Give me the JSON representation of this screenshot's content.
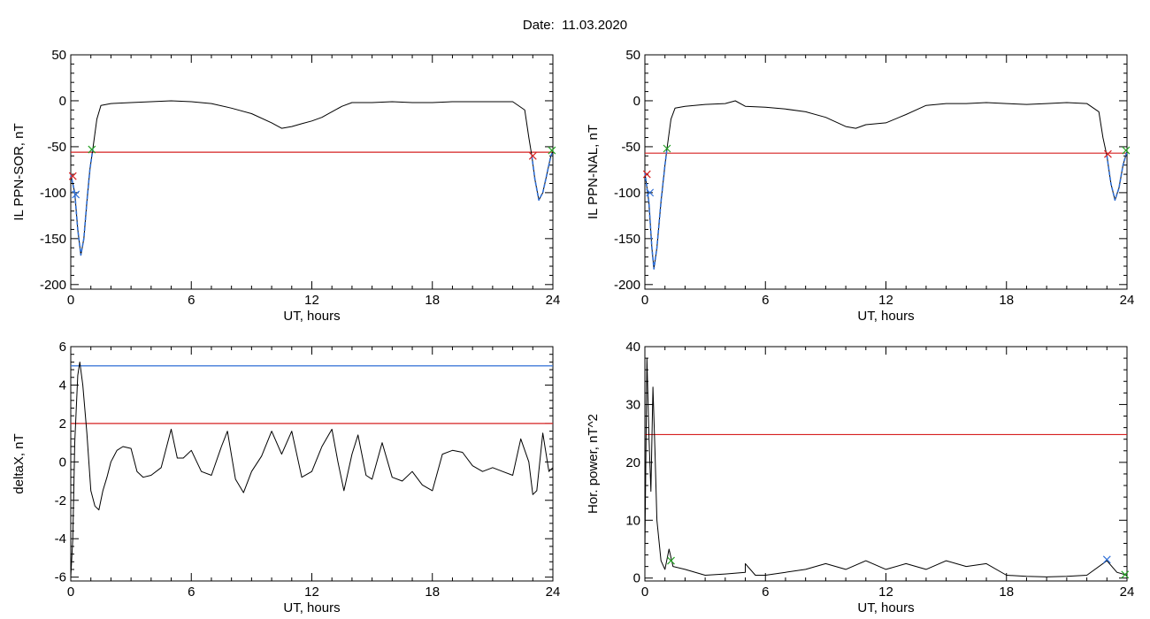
{
  "title": "Date:  11.03.2020",
  "chart_data": [
    {
      "type": "line",
      "ylabel": "IL PPN-SOR, nT",
      "xlabel": "UT, hours",
      "xlim": [
        0,
        24
      ],
      "ylim": [
        -205,
        50
      ],
      "xticks": [
        0,
        6,
        12,
        18,
        24
      ],
      "yticks": [
        -200,
        -150,
        -100,
        -50,
        0,
        50
      ],
      "threshold_lines": [
        {
          "value": -56,
          "color": "#d62020"
        }
      ],
      "series": [
        {
          "color": "#000000",
          "points": [
            [
              0.0,
              -80
            ],
            [
              0.2,
              -100
            ],
            [
              0.35,
              -140
            ],
            [
              0.5,
              -168
            ],
            [
              0.65,
              -150
            ],
            [
              0.8,
              -110
            ],
            [
              0.95,
              -75
            ],
            [
              1.1,
              -52
            ],
            [
              1.3,
              -20
            ],
            [
              1.5,
              -5
            ],
            [
              2,
              -3
            ],
            [
              3,
              -2
            ],
            [
              4,
              -1
            ],
            [
              5,
              0
            ],
            [
              6,
              -1
            ],
            [
              7,
              -3
            ],
            [
              8,
              -8
            ],
            [
              9,
              -14
            ],
            [
              10,
              -24
            ],
            [
              10.5,
              -30
            ],
            [
              11,
              -28
            ],
            [
              11.5,
              -25
            ],
            [
              12,
              -22
            ],
            [
              12.5,
              -18
            ],
            [
              13,
              -12
            ],
            [
              13.5,
              -6
            ],
            [
              14,
              -2
            ],
            [
              15,
              -2
            ],
            [
              16,
              -1
            ],
            [
              17,
              -2
            ],
            [
              18,
              -2
            ],
            [
              19,
              -1
            ],
            [
              20,
              -1
            ],
            [
              21,
              -1
            ],
            [
              22,
              -1
            ],
            [
              22.6,
              -10
            ],
            [
              22.8,
              -40
            ],
            [
              22.95,
              -60
            ],
            [
              23.1,
              -85
            ],
            [
              23.3,
              -108
            ],
            [
              23.5,
              -100
            ],
            [
              23.7,
              -80
            ],
            [
              23.9,
              -60
            ],
            [
              24,
              -55
            ]
          ]
        },
        {
          "color": "#2f6fd6",
          "dashed": true,
          "points": [
            [
              0.0,
              -80
            ],
            [
              0.2,
              -100
            ],
            [
              0.35,
              -140
            ],
            [
              0.5,
              -168
            ],
            [
              0.65,
              -150
            ],
            [
              0.8,
              -110
            ],
            [
              0.95,
              -75
            ],
            [
              1.1,
              -52
            ]
          ]
        },
        {
          "color": "#2f6fd6",
          "dashed": true,
          "points": [
            [
              22.95,
              -60
            ],
            [
              23.1,
              -85
            ],
            [
              23.3,
              -108
            ],
            [
              23.5,
              -100
            ],
            [
              23.7,
              -80
            ],
            [
              23.9,
              -60
            ],
            [
              24,
              -55
            ]
          ]
        }
      ],
      "markers": [
        {
          "x": 0.1,
          "y": -82,
          "color": "#d62020"
        },
        {
          "x": 0.25,
          "y": -102,
          "color": "#2f6fd6"
        },
        {
          "x": 1.05,
          "y": -53,
          "color": "#22a022"
        },
        {
          "x": 23.0,
          "y": -60,
          "color": "#d62020"
        },
        {
          "x": 23.95,
          "y": -54,
          "color": "#22a022"
        }
      ]
    },
    {
      "type": "line",
      "ylabel": "IL PPN-NAL, nT",
      "xlabel": "UT, hours",
      "xlim": [
        0,
        24
      ],
      "ylim": [
        -205,
        50
      ],
      "xticks": [
        0,
        6,
        12,
        18,
        24
      ],
      "yticks": [
        -200,
        -150,
        -100,
        -50,
        0,
        50
      ],
      "threshold_lines": [
        {
          "value": -57,
          "color": "#d62020"
        }
      ],
      "series": [
        {
          "color": "#000000",
          "points": [
            [
              0.0,
              -78
            ],
            [
              0.2,
              -110
            ],
            [
              0.35,
              -160
            ],
            [
              0.45,
              -183
            ],
            [
              0.6,
              -160
            ],
            [
              0.8,
              -110
            ],
            [
              1.0,
              -70
            ],
            [
              1.1,
              -52
            ],
            [
              1.3,
              -20
            ],
            [
              1.5,
              -8
            ],
            [
              2,
              -6
            ],
            [
              3,
              -4
            ],
            [
              4,
              -3
            ],
            [
              4.5,
              0
            ],
            [
              5,
              -6
            ],
            [
              6,
              -7
            ],
            [
              7,
              -9
            ],
            [
              8,
              -12
            ],
            [
              9,
              -18
            ],
            [
              10,
              -28
            ],
            [
              10.5,
              -30
            ],
            [
              11,
              -26
            ],
            [
              12,
              -24
            ],
            [
              13,
              -15
            ],
            [
              14,
              -5
            ],
            [
              15,
              -3
            ],
            [
              16,
              -3
            ],
            [
              17,
              -2
            ],
            [
              18,
              -3
            ],
            [
              19,
              -4
            ],
            [
              20,
              -3
            ],
            [
              21,
              -2
            ],
            [
              22,
              -3
            ],
            [
              22.6,
              -12
            ],
            [
              22.8,
              -40
            ],
            [
              23.0,
              -60
            ],
            [
              23.2,
              -90
            ],
            [
              23.4,
              -108
            ],
            [
              23.6,
              -95
            ],
            [
              23.8,
              -70
            ],
            [
              24,
              -55
            ]
          ]
        },
        {
          "color": "#2f6fd6",
          "dashed": true,
          "points": [
            [
              0.0,
              -78
            ],
            [
              0.2,
              -110
            ],
            [
              0.35,
              -160
            ],
            [
              0.45,
              -183
            ],
            [
              0.6,
              -160
            ],
            [
              0.8,
              -110
            ],
            [
              1.0,
              -70
            ],
            [
              1.1,
              -52
            ]
          ]
        },
        {
          "color": "#2f6fd6",
          "dashed": true,
          "points": [
            [
              23.0,
              -60
            ],
            [
              23.2,
              -90
            ],
            [
              23.4,
              -108
            ],
            [
              23.6,
              -95
            ],
            [
              23.8,
              -70
            ],
            [
              24,
              -55
            ]
          ]
        }
      ],
      "markers": [
        {
          "x": 0.1,
          "y": -80,
          "color": "#d62020"
        },
        {
          "x": 0.25,
          "y": -100,
          "color": "#2f6fd6"
        },
        {
          "x": 1.1,
          "y": -52,
          "color": "#22a022"
        },
        {
          "x": 23.05,
          "y": -58,
          "color": "#d62020"
        },
        {
          "x": 23.95,
          "y": -54,
          "color": "#22a022"
        }
      ]
    },
    {
      "type": "line",
      "ylabel": "deltaX, nT",
      "xlabel": "UT, hours",
      "xlim": [
        0,
        24
      ],
      "ylim": [
        -6.2,
        6
      ],
      "xticks": [
        0,
        6,
        12,
        18,
        24
      ],
      "yticks": [
        -6,
        -4,
        -2,
        0,
        2,
        4,
        6
      ],
      "threshold_lines": [
        {
          "value": 5.0,
          "color": "#2f6fd6"
        },
        {
          "value": 2.0,
          "color": "#d62020"
        }
      ],
      "series": [
        {
          "color": "#000000",
          "points": [
            [
              0.0,
              -6
            ],
            [
              0.1,
              -4
            ],
            [
              0.2,
              1
            ],
            [
              0.35,
              4.5
            ],
            [
              0.45,
              5.2
            ],
            [
              0.6,
              4
            ],
            [
              0.8,
              1.5
            ],
            [
              1.0,
              -1.5
            ],
            [
              1.2,
              -2.3
            ],
            [
              1.4,
              -2.5
            ],
            [
              1.6,
              -1.5
            ],
            [
              1.8,
              -0.8
            ],
            [
              2.0,
              0
            ],
            [
              2.3,
              0.6
            ],
            [
              2.6,
              0.8
            ],
            [
              3.0,
              0.7
            ],
            [
              3.3,
              -0.5
            ],
            [
              3.6,
              -0.8
            ],
            [
              4,
              -0.7
            ],
            [
              4.5,
              -0.3
            ],
            [
              5,
              1.7
            ],
            [
              5.3,
              0.2
            ],
            [
              5.6,
              0.2
            ],
            [
              6,
              0.6
            ],
            [
              6.5,
              -0.5
            ],
            [
              7,
              -0.7
            ],
            [
              7.5,
              0.8
            ],
            [
              7.8,
              1.6
            ],
            [
              8.2,
              -0.9
            ],
            [
              8.6,
              -1.6
            ],
            [
              9,
              -0.5
            ],
            [
              9.5,
              0.3
            ],
            [
              10,
              1.6
            ],
            [
              10.5,
              0.4
            ],
            [
              11,
              1.6
            ],
            [
              11.5,
              -0.8
            ],
            [
              12,
              -0.5
            ],
            [
              12.5,
              0.8
            ],
            [
              13,
              1.7
            ],
            [
              13.3,
              0
            ],
            [
              13.6,
              -1.5
            ],
            [
              14,
              0.4
            ],
            [
              14.3,
              1.4
            ],
            [
              14.7,
              -0.7
            ],
            [
              15,
              -0.9
            ],
            [
              15.5,
              1
            ],
            [
              16,
              -0.8
            ],
            [
              16.5,
              -1
            ],
            [
              17,
              -0.5
            ],
            [
              17.5,
              -1.2
            ],
            [
              18,
              -1.5
            ],
            [
              18.5,
              0.4
            ],
            [
              19,
              0.6
            ],
            [
              19.5,
              0.5
            ],
            [
              20,
              -0.2
            ],
            [
              20.5,
              -0.5
            ],
            [
              21,
              -0.3
            ],
            [
              21.5,
              -0.5
            ],
            [
              22,
              -0.7
            ],
            [
              22.4,
              1.2
            ],
            [
              22.8,
              0
            ],
            [
              23.0,
              -1.7
            ],
            [
              23.2,
              -1.5
            ],
            [
              23.5,
              1.5
            ],
            [
              23.8,
              -0.5
            ],
            [
              24,
              -0.3
            ]
          ]
        }
      ],
      "markers": []
    },
    {
      "type": "line",
      "ylabel": "Hor. power, nT^2",
      "xlabel": "UT, hours",
      "xlim": [
        0,
        24
      ],
      "ylim": [
        -0.5,
        40
      ],
      "xticks": [
        0,
        6,
        12,
        18,
        24
      ],
      "yticks": [
        0,
        10,
        20,
        30,
        40
      ],
      "threshold_lines": [
        {
          "value": 24.8,
          "color": "#d62020"
        }
      ],
      "series": [
        {
          "color": "#000000",
          "points": [
            [
              0.0,
              5
            ],
            [
              0.1,
              38
            ],
            [
              0.2,
              25
            ],
            [
              0.3,
              15
            ],
            [
              0.4,
              33
            ],
            [
              0.5,
              22
            ],
            [
              0.6,
              10
            ],
            [
              0.8,
              3
            ],
            [
              1.0,
              1.5
            ],
            [
              1.2,
              5
            ],
            [
              1.4,
              2
            ],
            [
              2,
              1.5
            ],
            [
              3,
              0.5
            ],
            [
              4,
              0.7
            ],
            [
              5,
              1
            ],
            [
              5,
              2.5
            ],
            [
              5.5,
              0.5
            ],
            [
              6,
              0.5
            ],
            [
              7,
              1
            ],
            [
              8,
              1.5
            ],
            [
              9,
              2.5
            ],
            [
              10,
              1.5
            ],
            [
              11,
              3
            ],
            [
              12,
              1.5
            ],
            [
              13,
              2.5
            ],
            [
              14,
              1.5
            ],
            [
              15,
              3
            ],
            [
              16,
              2
            ],
            [
              17,
              2.5
            ],
            [
              18,
              0.5
            ],
            [
              19,
              0.3
            ],
            [
              20,
              0.2
            ],
            [
              21,
              0.3
            ],
            [
              22,
              0.5
            ],
            [
              23,
              3
            ],
            [
              23.5,
              1
            ],
            [
              24,
              0.5
            ]
          ]
        }
      ],
      "markers": [
        {
          "x": 1.3,
          "y": 3,
          "color": "#22a022"
        },
        {
          "x": 23.0,
          "y": 3.2,
          "color": "#2f6fd6"
        },
        {
          "x": 23.9,
          "y": 0.6,
          "color": "#22a022"
        }
      ]
    }
  ]
}
